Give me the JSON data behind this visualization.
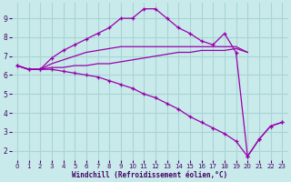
{
  "background_color": "#c8eaea",
  "grid_color": "#aad4d4",
  "line_color": "#9900aa",
  "xlabel": "Windchill (Refroidissement éolien,°C)",
  "ylim": [
    1.5,
    9.8
  ],
  "xlim": [
    -0.5,
    23.5
  ],
  "yticks": [
    2,
    3,
    4,
    5,
    6,
    7,
    8,
    9
  ],
  "xticks": [
    0,
    1,
    2,
    3,
    4,
    5,
    6,
    7,
    8,
    9,
    10,
    11,
    12,
    13,
    14,
    15,
    16,
    17,
    18,
    19,
    20,
    21,
    22,
    23
  ],
  "lines": [
    {
      "x": [
        0,
        1,
        2,
        3,
        4,
        5,
        6,
        7,
        8,
        9,
        10,
        11,
        12,
        13,
        14,
        15,
        16,
        17,
        18,
        19,
        20
      ],
      "y": [
        6.5,
        6.3,
        6.3,
        6.4,
        6.4,
        6.5,
        6.5,
        6.6,
        6.6,
        6.7,
        6.8,
        6.9,
        7.0,
        7.1,
        7.2,
        7.2,
        7.3,
        7.3,
        7.3,
        7.4,
        7.2
      ],
      "marker": false
    },
    {
      "x": [
        0,
        1,
        2,
        3,
        4,
        5,
        6,
        7,
        8,
        9,
        10,
        11,
        12,
        13,
        14,
        15,
        16,
        17,
        18,
        19,
        20
      ],
      "y": [
        6.5,
        6.3,
        6.3,
        6.6,
        6.8,
        7.0,
        7.2,
        7.3,
        7.4,
        7.5,
        7.5,
        7.5,
        7.5,
        7.5,
        7.5,
        7.5,
        7.5,
        7.5,
        7.5,
        7.5,
        7.2
      ],
      "marker": false
    },
    {
      "x": [
        0,
        1,
        2,
        3,
        4,
        5,
        6,
        7,
        8,
        9,
        10,
        11,
        12,
        13,
        14,
        15,
        16,
        17,
        18,
        19,
        20,
        21,
        22,
        23
      ],
      "y": [
        6.5,
        6.3,
        6.3,
        6.9,
        7.3,
        7.6,
        7.9,
        8.2,
        8.5,
        9.0,
        9.0,
        9.5,
        9.5,
        9.0,
        8.5,
        8.2,
        7.8,
        7.6,
        8.2,
        7.2,
        1.7,
        2.6,
        3.3,
        3.5
      ],
      "marker": true
    },
    {
      "x": [
        0,
        1,
        2,
        3,
        4,
        5,
        6,
        7,
        8,
        9,
        10,
        11,
        12,
        13,
        14,
        15,
        16,
        17,
        18,
        19,
        20,
        21,
        22,
        23
      ],
      "y": [
        6.5,
        6.3,
        6.3,
        6.3,
        6.2,
        6.1,
        6.0,
        5.9,
        5.7,
        5.5,
        5.3,
        5.0,
        4.8,
        4.5,
        4.2,
        3.8,
        3.5,
        3.2,
        2.9,
        2.5,
        1.7,
        2.6,
        3.3,
        3.5
      ],
      "marker": true
    }
  ]
}
